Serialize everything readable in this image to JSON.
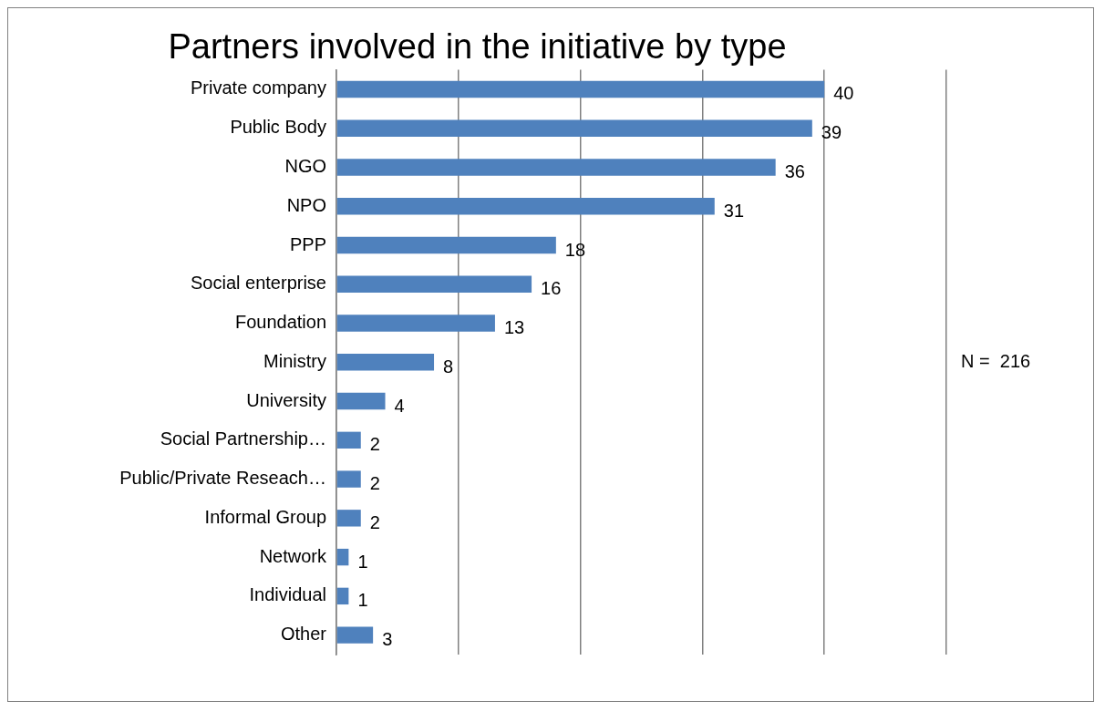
{
  "chart_data": {
    "type": "bar",
    "orientation": "horizontal",
    "title": "Partners involved in the initiative by type",
    "categories": [
      "Private company",
      "Public Body",
      "NGO",
      "NPO",
      "PPP",
      "Social enterprise",
      "Foundation",
      "Ministry",
      "University",
      "Social Partnership…",
      "Public/Private Reseach…",
      "Informal Group",
      "Network",
      "Individual",
      "Other"
    ],
    "values": [
      40,
      39,
      36,
      31,
      18,
      16,
      13,
      8,
      4,
      2,
      2,
      2,
      1,
      1,
      3
    ],
    "color": "#4f81bd",
    "xlim": [
      0,
      50
    ],
    "xticks": [
      {
        "value": 0,
        "label": null
      },
      {
        "value": 10,
        "label": null
      },
      {
        "value": 20,
        "label": null
      },
      {
        "value": 30,
        "label": null
      },
      {
        "value": 40,
        "label": null
      },
      {
        "value": 50,
        "label": null
      }
    ],
    "tick_labels": "y",
    "grid": "x",
    "data_labels": true,
    "legend": false,
    "annotations": [
      "N =  216"
    ]
  }
}
